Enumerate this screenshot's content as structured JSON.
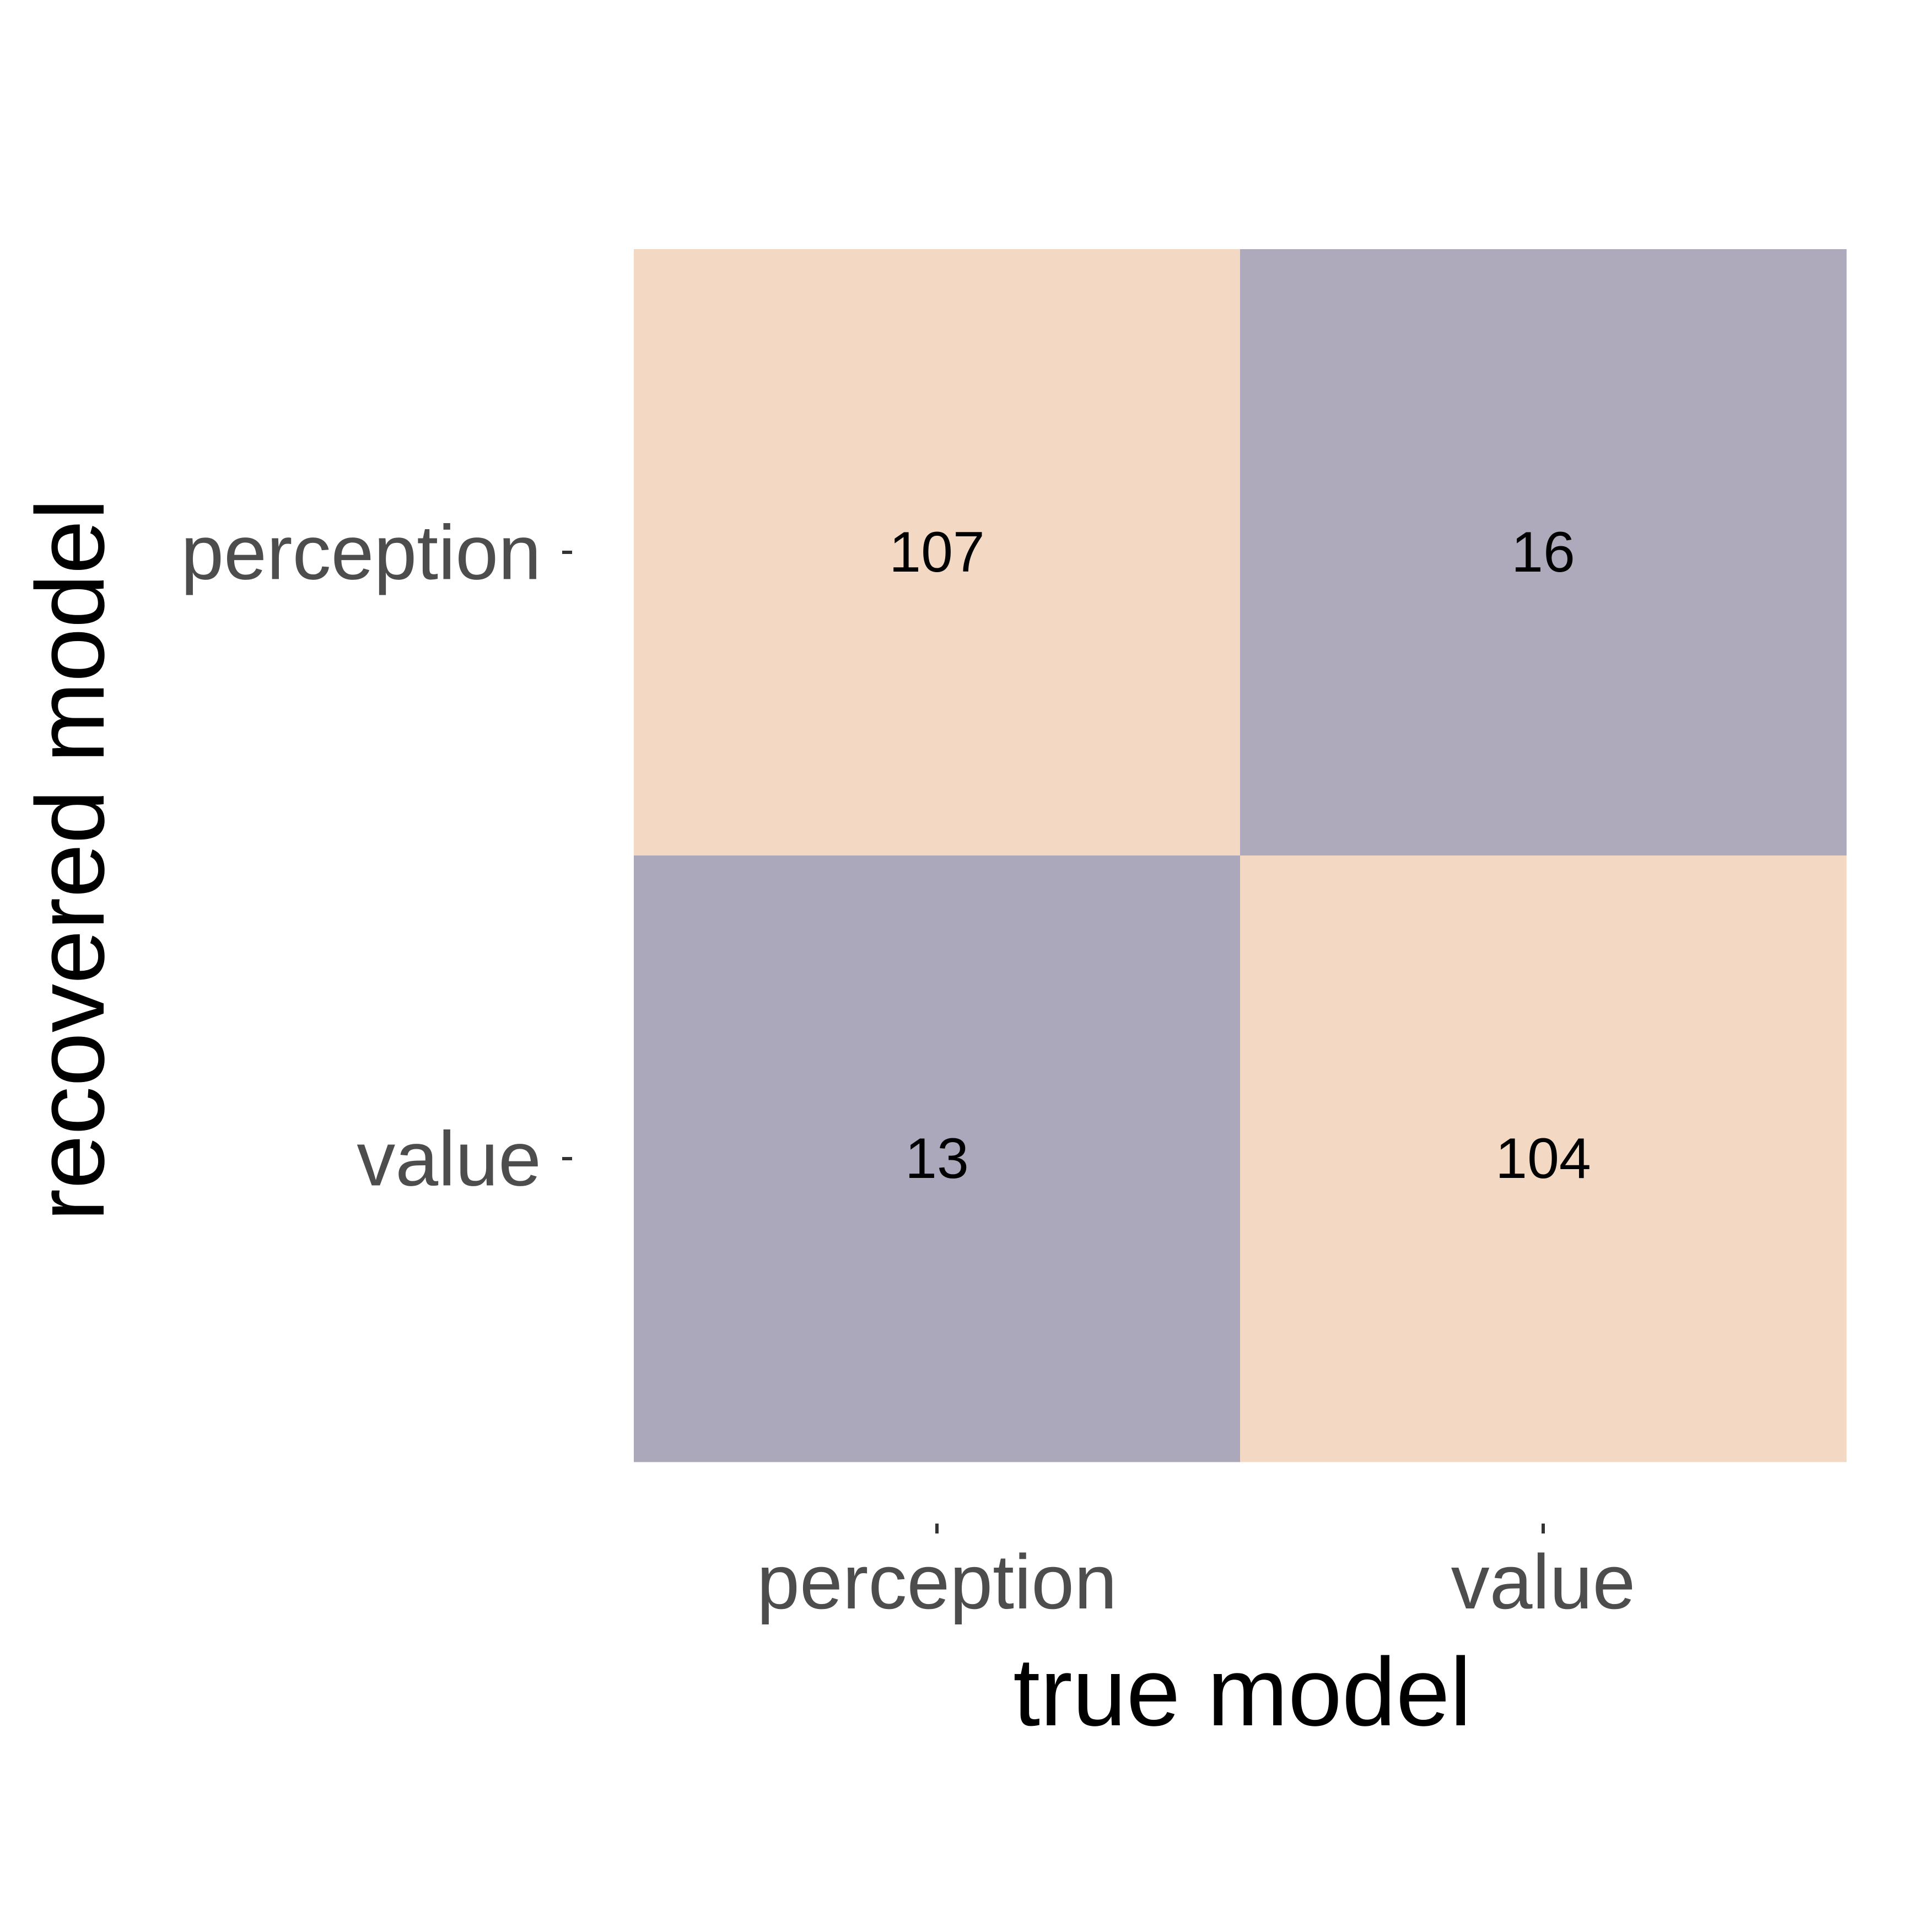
{
  "chart_data": {
    "type": "heatmap",
    "x_categories": [
      "perception",
      "value"
    ],
    "y_categories": [
      "perception",
      "value"
    ],
    "xlabel": "true model",
    "ylabel": "recovered model",
    "cells": [
      {
        "x": "perception",
        "y": "perception",
        "value": 107,
        "color": "#f3d9c3"
      },
      {
        "x": "value",
        "y": "perception",
        "value": 16,
        "color": "#aeaabb"
      },
      {
        "x": "perception",
        "y": "value",
        "value": 13,
        "color": "#aba8bc"
      },
      {
        "x": "value",
        "y": "value",
        "value": 104,
        "color": "#f3d9c3"
      }
    ],
    "legend": "none",
    "grid": false
  },
  "colors": {
    "high": "#f3d9c3",
    "low": "#aeaabb",
    "tick_label": "#4d4d4d",
    "axis_title": "#000000",
    "cell_label": "#000000",
    "tick_mark": "#333333"
  }
}
